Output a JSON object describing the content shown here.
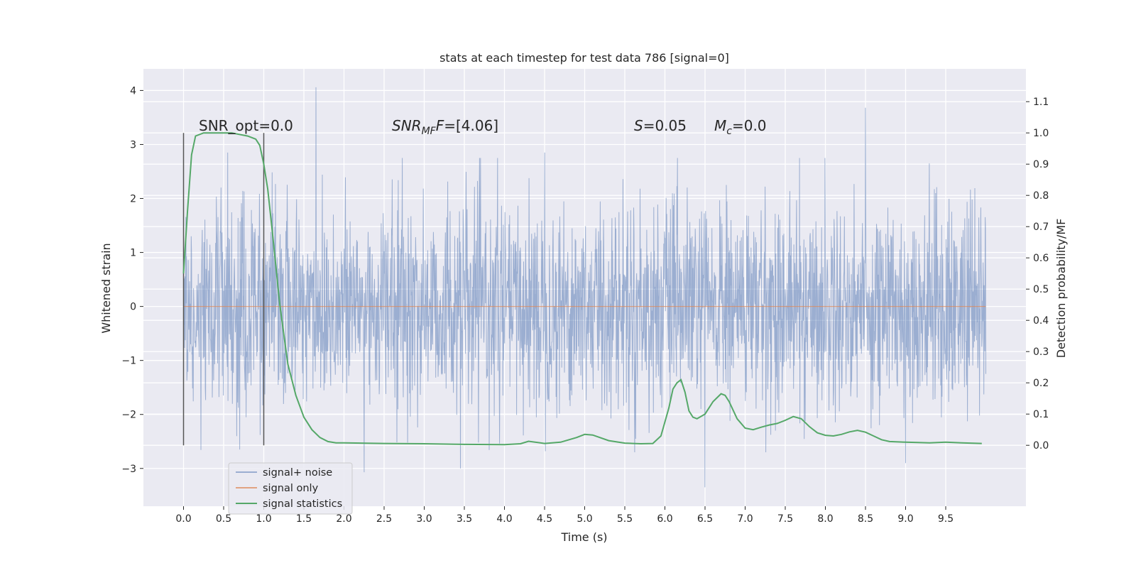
{
  "chart_data": {
    "type": "line",
    "title": "stats at each timestep for test data 786 [signal=0]",
    "xlabel": "Time (s)",
    "ylabel": "Whitened strain",
    "y2label": "Detection probability/MF",
    "xlim": [
      -0.5,
      10.5
    ],
    "ylim": [
      -3.7,
      4.4
    ],
    "y2lim": [
      -0.195,
      1.205
    ],
    "xticks": [
      0.0,
      0.5,
      1.0,
      1.5,
      2.0,
      2.5,
      3.0,
      3.5,
      4.0,
      4.5,
      5.0,
      5.5,
      6.0,
      6.5,
      7.0,
      7.5,
      8.0,
      8.5,
      9.0,
      9.5
    ],
    "xtick_labels": [
      "0.0",
      "0.5",
      "1.0",
      "1.5",
      "2.0",
      "2.5",
      "3.0",
      "3.5",
      "4.0",
      "4.5",
      "5.0",
      "5.5",
      "6.0",
      "6.5",
      "7.0",
      "7.5",
      "8.0",
      "8.5",
      "9.0",
      "9.5"
    ],
    "yticks": [
      -3,
      -2,
      -1,
      0,
      1,
      2,
      3,
      4
    ],
    "ytick_labels": [
      "−3",
      "−2",
      "−1",
      "0",
      "1",
      "2",
      "3",
      "4"
    ],
    "y2ticks": [
      0.0,
      0.1,
      0.2,
      0.3,
      0.4,
      0.5,
      0.6,
      0.7,
      0.8,
      0.9,
      1.0,
      1.1
    ],
    "y2tick_labels": [
      "0.0",
      "0.1",
      "0.2",
      "0.3",
      "0.4",
      "0.5",
      "0.6",
      "0.7",
      "0.8",
      "0.9",
      "1.0",
      "1.1"
    ],
    "grid": true,
    "legend_position": "bottom-left",
    "annotations": {
      "snr_opt": "SNR_opt=0.0",
      "snr_mf_base": "SNR",
      "snr_mf_sub": "MF",
      "snr_mf_value": "=[4.06]",
      "s_var": "S",
      "s_value": "=0.05",
      "mc_var": "M",
      "mc_sub": "c",
      "mc_value": "=0.0"
    },
    "window_markers": [
      0.0,
      1.0
    ],
    "series": [
      {
        "name": "signal+ noise",
        "color": "#4c72b0",
        "axis": "left",
        "style": "noise-trace",
        "x_range": [
          0.0,
          10.0
        ],
        "sample_rate": 2048,
        "spikes": [
          {
            "x": 1.65,
            "y": 4.06
          },
          {
            "x": 8.5,
            "y": 3.68
          },
          {
            "x": 0.55,
            "y": 2.85
          },
          {
            "x": 4.5,
            "y": 2.85
          },
          {
            "x": 6.5,
            "y": -3.35
          },
          {
            "x": 2.25,
            "y": -3.07
          },
          {
            "x": 3.45,
            "y": -3.0
          },
          {
            "x": 0.7,
            "y": -2.65
          },
          {
            "x": 9.0,
            "y": -2.9
          }
        ]
      },
      {
        "name": "signal only",
        "color": "#dd8452",
        "axis": "left",
        "x": [
          0.0,
          10.0
        ],
        "y": [
          0.0,
          0.0
        ]
      },
      {
        "name": "signal statistics",
        "color": "#55a868",
        "axis": "right",
        "x": [
          0.0,
          0.05,
          0.1,
          0.15,
          0.25,
          0.4,
          0.6,
          0.8,
          0.9,
          0.95,
          1.0,
          1.05,
          1.1,
          1.2,
          1.3,
          1.4,
          1.5,
          1.6,
          1.7,
          1.8,
          1.9,
          2.0,
          2.5,
          3.0,
          3.5,
          4.0,
          4.2,
          4.3,
          4.5,
          4.7,
          4.9,
          5.0,
          5.1,
          5.3,
          5.5,
          5.7,
          5.85,
          5.95,
          6.05,
          6.1,
          6.15,
          6.2,
          6.25,
          6.3,
          6.35,
          6.4,
          6.5,
          6.6,
          6.7,
          6.75,
          6.8,
          6.9,
          7.0,
          7.1,
          7.2,
          7.3,
          7.4,
          7.5,
          7.6,
          7.7,
          7.8,
          7.9,
          8.0,
          8.1,
          8.2,
          8.3,
          8.4,
          8.5,
          8.6,
          8.7,
          8.8,
          9.0,
          9.3,
          9.5,
          9.7,
          9.95
        ],
        "y": [
          0.55,
          0.75,
          0.93,
          0.99,
          1.0,
          1.0,
          1.0,
          0.99,
          0.98,
          0.96,
          0.9,
          0.82,
          0.7,
          0.45,
          0.26,
          0.16,
          0.09,
          0.05,
          0.025,
          0.012,
          0.008,
          0.008,
          0.006,
          0.005,
          0.003,
          0.002,
          0.005,
          0.013,
          0.006,
          0.01,
          0.025,
          0.035,
          0.033,
          0.015,
          0.007,
          0.005,
          0.006,
          0.03,
          0.12,
          0.18,
          0.2,
          0.21,
          0.17,
          0.11,
          0.09,
          0.085,
          0.1,
          0.14,
          0.165,
          0.16,
          0.14,
          0.085,
          0.055,
          0.05,
          0.058,
          0.065,
          0.07,
          0.08,
          0.092,
          0.085,
          0.06,
          0.04,
          0.032,
          0.03,
          0.035,
          0.043,
          0.048,
          0.042,
          0.03,
          0.018,
          0.012,
          0.01,
          0.008,
          0.01,
          0.008,
          0.006
        ]
      }
    ]
  }
}
